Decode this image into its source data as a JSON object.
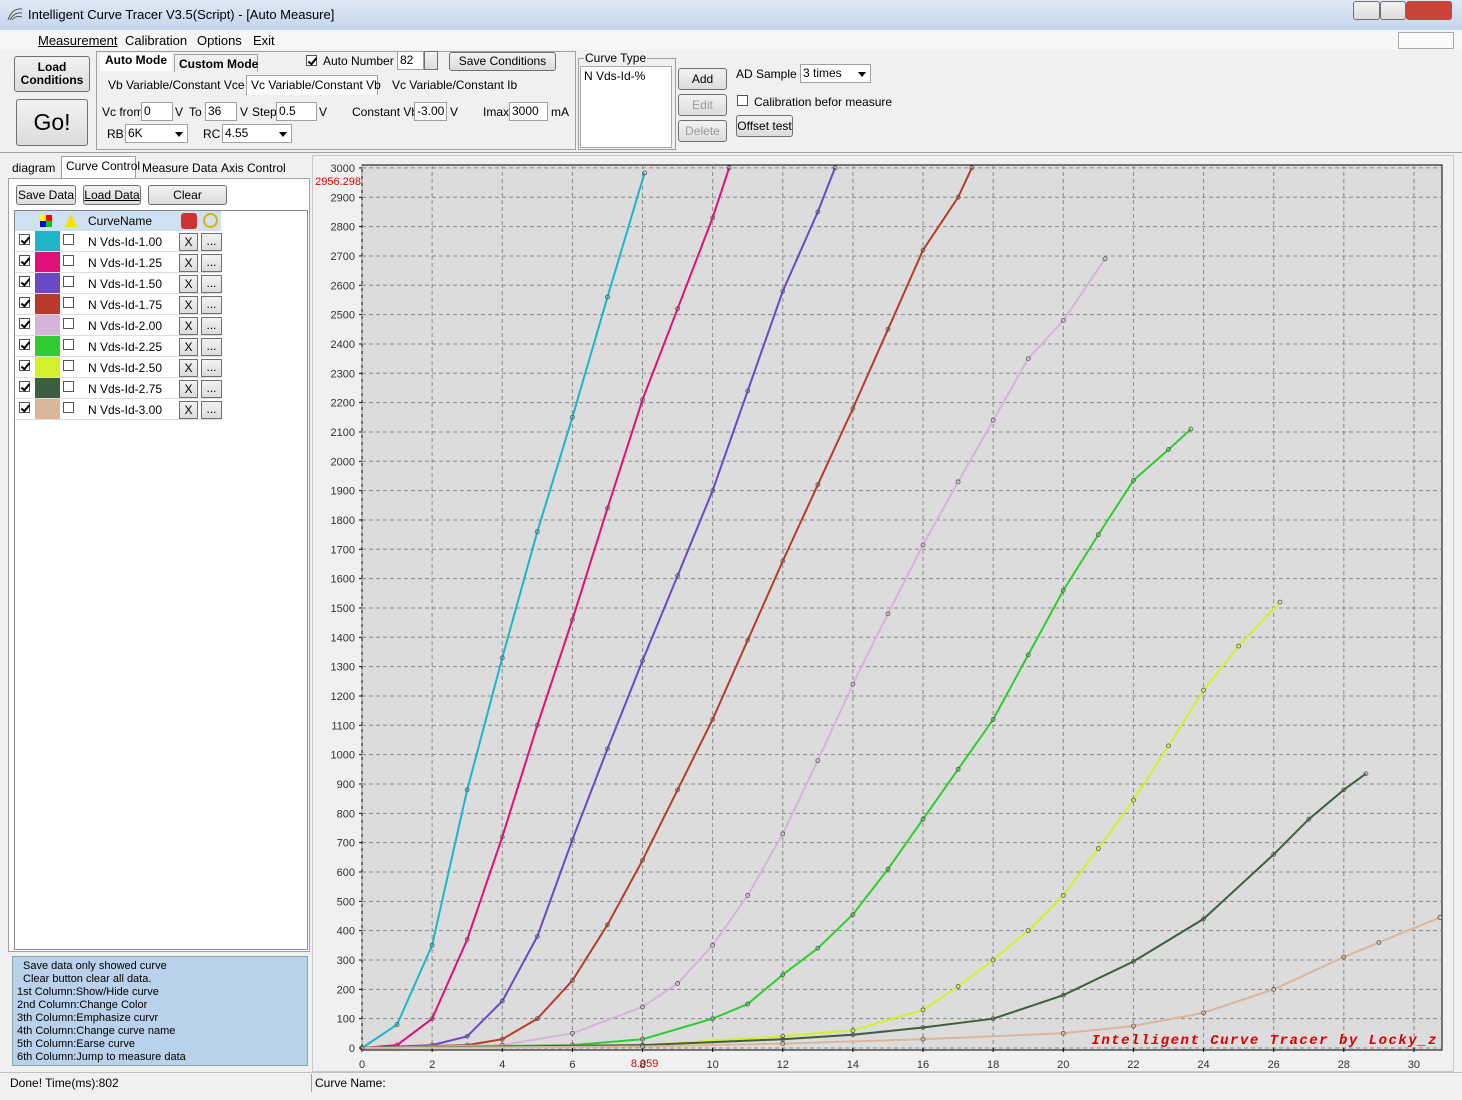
{
  "window": {
    "title": "Intelligent Curve Tracer V3.5(Script) - [Auto Measure]",
    "menu": [
      "Measurement",
      "Calibration",
      "Options",
      "Exit"
    ]
  },
  "toolbar": {
    "load_conditions": "Load Conditions",
    "go": "Go!",
    "modes": [
      "Auto Mode",
      "Custom Mode"
    ],
    "sub_tabs": [
      "Vb Variable/Constant Vce",
      "Vc Variable/Constant Vb",
      "Vc Variable/Constant Ib"
    ],
    "vc_from": {
      "label": "Vc from",
      "value": "0",
      "unit": "V"
    },
    "to": {
      "label": "To",
      "value": "36",
      "unit": "V"
    },
    "step": {
      "label": "Step",
      "value": "0.5",
      "unit": "V"
    },
    "constant_vb": {
      "label": "Constant Vb",
      "value": "-3.00",
      "unit": "V"
    },
    "imax": {
      "label": "Imax",
      "value": "3000",
      "unit": "mA"
    },
    "rb": {
      "label": "RB",
      "value": "6K"
    },
    "rc": {
      "label": "RC",
      "value": "4.55"
    },
    "auto_number": {
      "label": "Auto Number",
      "value": "82"
    },
    "save_conditions": "Save Conditions",
    "curve_type": {
      "title": "Curve Type",
      "items": [
        "N Vds-Id-%"
      ],
      "buttons": [
        "Add",
        "Edit",
        "Delete"
      ]
    },
    "ad_sample": {
      "label": "AD Sample",
      "value": "3 times"
    },
    "calibration": "Calibration befor measure",
    "offset_test": "Offset test"
  },
  "left_panel": {
    "tabs": [
      "diagram",
      "Curve Control",
      "Measure Data",
      "Axis Control"
    ],
    "buttons": [
      "Save Data",
      "Load Data",
      "Clear"
    ],
    "column_header": "CurveName",
    "row_buttons": [
      "X",
      "..."
    ],
    "help": [
      "Save data only showed curve",
      "Clear button clear all data.",
      "1st Column:Show/Hide curve",
      "2nd Column:Change Color",
      "3th Column:Emphasize curvr",
      "4th Column:Change curve name",
      "5th Column:Earse curve",
      "6th Column:Jump to measure data"
    ]
  },
  "status": [
    "Done!  Time(ms):802",
    "Curve Name:"
  ],
  "chart_data": {
    "type": "line",
    "xlim": [
      0,
      30.8
    ],
    "ylim": [
      0,
      3010
    ],
    "xticks": [
      0,
      2,
      4,
      6,
      8,
      10,
      12,
      14,
      16,
      18,
      20,
      22,
      24,
      26,
      28,
      30
    ],
    "yticks": [
      0,
      100,
      200,
      300,
      400,
      500,
      600,
      700,
      800,
      900,
      1000,
      1100,
      1200,
      1300,
      1400,
      1500,
      1600,
      1700,
      1800,
      1900,
      2000,
      2100,
      2200,
      2300,
      2400,
      2500,
      2600,
      2700,
      2800,
      2900,
      3000
    ],
    "grid": true,
    "cursor": {
      "x": 8.059,
      "y": 2956.298
    },
    "annotation": "Intelligent Curve Tracer by Locky_z",
    "series": [
      {
        "name": "N Vds-Id-1.00",
        "color": "#1fb5c8",
        "x": [
          0,
          1,
          2,
          3,
          4,
          5,
          6,
          7,
          8.06
        ],
        "values": [
          0,
          80,
          350,
          880,
          1330,
          1760,
          2150,
          2560,
          2983
        ]
      },
      {
        "name": "N Vds-Id-1.25",
        "color": "#e0107a",
        "x": [
          0,
          1,
          2,
          3,
          4,
          5,
          6,
          7,
          8,
          9,
          10,
          10.47
        ],
        "values": [
          0,
          10,
          100,
          370,
          720,
          1100,
          1460,
          1840,
          2210,
          2520,
          2830,
          3000
        ]
      },
      {
        "name": "N Vds-Id-1.50",
        "color": "#6a48c8",
        "x": [
          0,
          2,
          3,
          4,
          5,
          6,
          7,
          8,
          9,
          10,
          11,
          12,
          13,
          13.49
        ],
        "values": [
          0,
          10,
          40,
          160,
          380,
          710,
          1020,
          1320,
          1610,
          1900,
          2240,
          2580,
          2850,
          3000
        ]
      },
      {
        "name": "N Vds-Id-1.75",
        "color": "#b83a2a",
        "x": [
          0,
          3,
          4,
          5,
          6,
          7,
          8,
          9,
          10,
          11,
          12,
          13,
          14,
          15,
          16,
          17,
          17.39
        ],
        "values": [
          0,
          10,
          30,
          100,
          230,
          420,
          640,
          880,
          1120,
          1390,
          1660,
          1920,
          2180,
          2450,
          2720,
          2900,
          3000
        ]
      },
      {
        "name": "N Vds-Id-2.00",
        "color": "#d4b4d8",
        "x": [
          0,
          4,
          6,
          8,
          9,
          10,
          11,
          12,
          13,
          14,
          15,
          16,
          17,
          18,
          19,
          20,
          21.19
        ],
        "values": [
          0,
          10,
          50,
          140,
          220,
          350,
          520,
          730,
          980,
          1240,
          1480,
          1715,
          1930,
          2140,
          2350,
          2480,
          2690
        ]
      },
      {
        "name": "N Vds-Id-2.25",
        "color": "#2ecc2e",
        "x": [
          0,
          6,
          8,
          10,
          11,
          12,
          13,
          14,
          15,
          16,
          17,
          18,
          19,
          20,
          21,
          22,
          23,
          23.64
        ],
        "values": [
          0,
          10,
          30,
          100,
          150,
          250,
          340,
          455,
          610,
          780,
          950,
          1120,
          1340,
          1560,
          1750,
          1935,
          2040,
          2110
        ]
      },
      {
        "name": "N Vds-Id-2.50",
        "color": "#d4f02a",
        "x": [
          0,
          8,
          12,
          14,
          16,
          17,
          18,
          19,
          20,
          21,
          22,
          23,
          24,
          25,
          26.18
        ],
        "values": [
          0,
          10,
          40,
          60,
          130,
          210,
          300,
          400,
          520,
          680,
          845,
          1030,
          1220,
          1370,
          1520
        ]
      },
      {
        "name": "N Vds-Id-2.75",
        "color": "#3e5e42",
        "x": [
          0,
          8,
          12,
          14,
          16,
          18,
          20,
          22,
          24,
          26,
          27,
          28,
          28.63
        ],
        "values": [
          0,
          10,
          30,
          45,
          70,
          100,
          180,
          295,
          440,
          660,
          780,
          880,
          935
        ]
      },
      {
        "name": "N Vds-Id-3.00",
        "color": "#dcb69a",
        "x": [
          0,
          8,
          12,
          16,
          20,
          22,
          24,
          26,
          28,
          29,
          30.74
        ],
        "values": [
          0,
          5,
          15,
          30,
          50,
          75,
          120,
          200,
          310,
          360,
          445
        ]
      }
    ]
  }
}
